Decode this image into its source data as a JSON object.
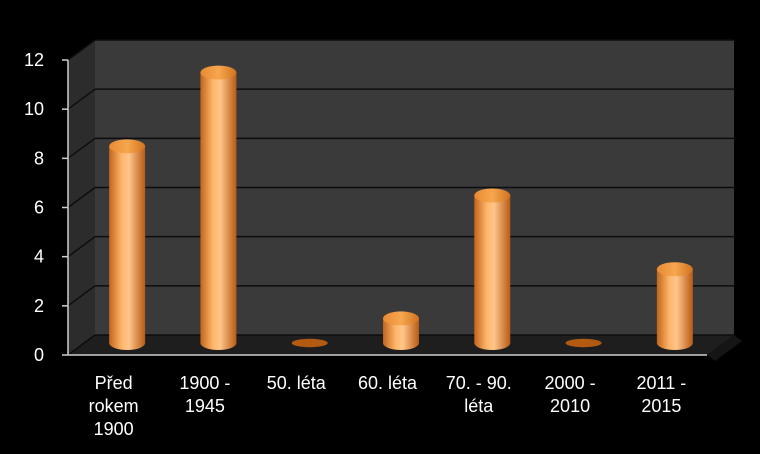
{
  "chart_data": {
    "type": "bar",
    "style": "3d-cylinder",
    "categories": [
      [
        "Před",
        "rokem",
        "1900"
      ],
      [
        "1900 -",
        "1945"
      ],
      [
        "50. léta"
      ],
      [
        "60. léta"
      ],
      [
        "70. - 90.",
        "léta"
      ],
      [
        "2000 -",
        "2010"
      ],
      [
        "2011 -",
        "2015"
      ]
    ],
    "values": [
      8,
      11,
      0,
      1,
      6,
      0,
      3
    ],
    "ylim": [
      0,
      12
    ],
    "yticks": [
      "0",
      "2",
      "4",
      "6",
      "8",
      "10",
      "12"
    ],
    "grid": true,
    "legend": "none",
    "colors": {
      "background": "#000000",
      "plot_wall": "#3a3a3a",
      "plot_floor": "#1e1e1e",
      "gridline": "#0d0d0d",
      "bar": "#f7a04a",
      "bar_dark": "#b25a12",
      "bar_light": "#ffd7a8",
      "bar_top": "#f49a40"
    }
  }
}
